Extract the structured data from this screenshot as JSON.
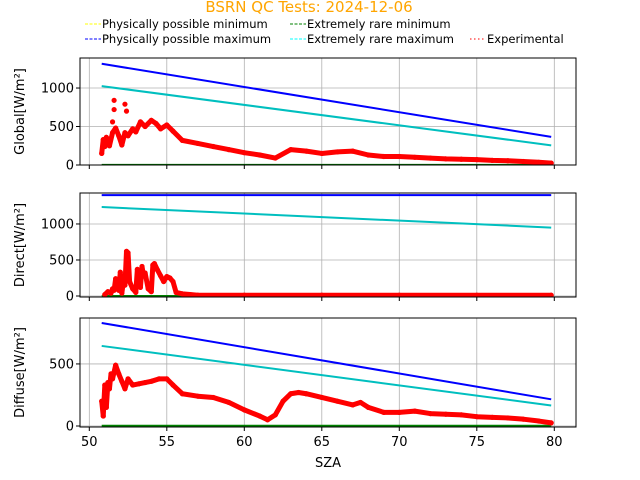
{
  "chart_data": {
    "type": "scatter",
    "title": "BSRN QC Tests: 2024-12-06",
    "title_color": "#ffa500",
    "xlabel": "SZA",
    "xlim": [
      49.4,
      81.4
    ],
    "xticks": [
      50,
      55,
      60,
      65,
      70,
      75,
      80
    ],
    "grid": true,
    "legend": {
      "placement": "top",
      "entries": [
        {
          "label": "Physically possible minimum",
          "color": "#ffff00",
          "style": "dashed"
        },
        {
          "label": "Extremely rare minimum",
          "color": "#008000",
          "style": "dashed"
        },
        {
          "label": "Physically possible maximum",
          "color": "#0000ff",
          "style": "dashed"
        },
        {
          "label": "Extremely rare maximum",
          "color": "#00ffff",
          "style": "dashed"
        },
        {
          "label": "Experimental",
          "color": "#ff0000",
          "style": "dotted"
        }
      ]
    },
    "panels": [
      {
        "name": "global",
        "ylabel": "Global[W/m²]",
        "ylim": [
          0,
          1390
        ],
        "yticks": [
          0,
          500,
          1000
        ],
        "series": [
          {
            "name": "Physically possible maximum",
            "color": "#0000ff",
            "x": [
              50.8,
              79.8
            ],
            "y": [
              1315,
              365
            ]
          },
          {
            "name": "Extremely rare maximum",
            "color": "#00bfbf",
            "x": [
              50.8,
              79.8
            ],
            "y": [
              1025,
              255
            ]
          },
          {
            "name": "Extremely rare minimum",
            "color": "#008000",
            "x": [
              50.8,
              79.8
            ],
            "y": [
              2,
              2
            ]
          },
          {
            "name": "Experimental",
            "color": "#ff0000",
            "x": [
              50.8,
              50.9,
              51.0,
              51.1,
              51.3,
              51.5,
              51.7,
              51.9,
              52.1,
              52.3,
              52.5,
              52.8,
              53.0,
              53.3,
              53.6,
              54.0,
              54.3,
              54.6,
              55.0,
              55.4,
              56,
              57,
              58,
              59,
              60,
              61,
              62,
              63,
              64,
              65,
              66,
              67,
              68,
              69,
              70,
              71,
              72,
              73,
              74,
              75,
              76,
              77,
              78,
              79,
              79.8
            ],
            "y": [
              150,
              330,
              240,
              360,
              250,
              420,
              480,
              380,
              260,
              420,
              380,
              470,
              430,
              560,
              500,
              580,
              540,
              470,
              520,
              440,
              320,
              280,
              240,
              200,
              160,
              130,
              90,
              200,
              180,
              150,
              170,
              180,
              130,
              110,
              110,
              100,
              90,
              80,
              75,
              70,
              60,
              55,
              45,
              35,
              25
            ],
            "outliers_x": [
              51.6,
              51.6,
              52.3,
              52.4,
              51.5
            ],
            "outliers_y": [
              840,
              720,
              790,
              700,
              560
            ]
          }
        ]
      },
      {
        "name": "direct",
        "ylabel": "Direct[W/m²]",
        "ylim": [
          -14,
          1430
        ],
        "yticks": [
          0,
          500,
          1000
        ],
        "series": [
          {
            "name": "Physically possible maximum",
            "color": "#0000ff",
            "x": [
              50.8,
              79.8
            ],
            "y": [
              1400,
              1400
            ]
          },
          {
            "name": "Extremely rare maximum",
            "color": "#00bfbf",
            "x": [
              50.8,
              79.8
            ],
            "y": [
              1235,
              950
            ]
          },
          {
            "name": "Extremely rare minimum",
            "color": "#008000",
            "x": [
              50.8,
              79.8
            ],
            "y": [
              0,
              0
            ]
          },
          {
            "name": "Experimental",
            "color": "#ff0000",
            "x": [
              51.0,
              51.2,
              51.4,
              51.5,
              51.6,
              51.7,
              51.8,
              51.9,
              52.0,
              52.1,
              52.2,
              52.3,
              52.4,
              52.5,
              52.6,
              52.8,
              53.0,
              53.1,
              53.2,
              53.3,
              53.4,
              53.5,
              53.6,
              53.8,
              54.0,
              54.1,
              54.2,
              54.4,
              54.6,
              54.8,
              55.0,
              55.2,
              55.4,
              55.6,
              56.0,
              56.5,
              57,
              60,
              65,
              70,
              75,
              79.8
            ],
            "y": [
              20,
              60,
              40,
              100,
              80,
              240,
              120,
              80,
              330,
              40,
              200,
              150,
              620,
              600,
              200,
              100,
              50,
              370,
              150,
              120,
              410,
              280,
              320,
              100,
              60,
              430,
              450,
              360,
              280,
              200,
              270,
              250,
              200,
              50,
              30,
              20,
              10,
              10,
              10,
              10,
              10,
              10
            ]
          }
        ]
      },
      {
        "name": "diffuse",
        "ylabel": "Diffuse[W/m²]",
        "ylim": [
          -8,
          870
        ],
        "yticks": [
          0,
          500
        ],
        "series": [
          {
            "name": "Physically possible maximum",
            "color": "#0000ff",
            "x": [
              50.8,
              79.8
            ],
            "y": [
              830,
              215
            ]
          },
          {
            "name": "Extremely rare maximum",
            "color": "#00bfbf",
            "x": [
              50.8,
              79.8
            ],
            "y": [
              645,
              165
            ]
          },
          {
            "name": "Extremely rare minimum",
            "color": "#008000",
            "x": [
              50.8,
              79.8
            ],
            "y": [
              2,
              2
            ]
          },
          {
            "name": "Experimental",
            "color": "#ff0000",
            "x": [
              50.8,
              50.9,
              51.0,
              51.1,
              51.2,
              51.3,
              51.4,
              51.5,
              51.7,
              51.9,
              52.1,
              52.3,
              52.5,
              52.8,
              53.2,
              53.6,
              54.0,
              54.5,
              55.0,
              55.4,
              56,
              57,
              58,
              59,
              60,
              61,
              61.5,
              62,
              62.5,
              63,
              63.5,
              64,
              65,
              66,
              67,
              67.5,
              68,
              69,
              70,
              71,
              72,
              73,
              74,
              75,
              76,
              77,
              78,
              79,
              79.8
            ],
            "y": [
              200,
              80,
              330,
              150,
              350,
              300,
              420,
              380,
              490,
              420,
              360,
              300,
              380,
              330,
              340,
              350,
              360,
              380,
              380,
              330,
              260,
              240,
              230,
              190,
              130,
              80,
              50,
              90,
              200,
              260,
              270,
              260,
              230,
              200,
              170,
              190,
              150,
              110,
              110,
              120,
              100,
              95,
              90,
              75,
              70,
              65,
              55,
              40,
              25
            ]
          }
        ]
      }
    ]
  }
}
